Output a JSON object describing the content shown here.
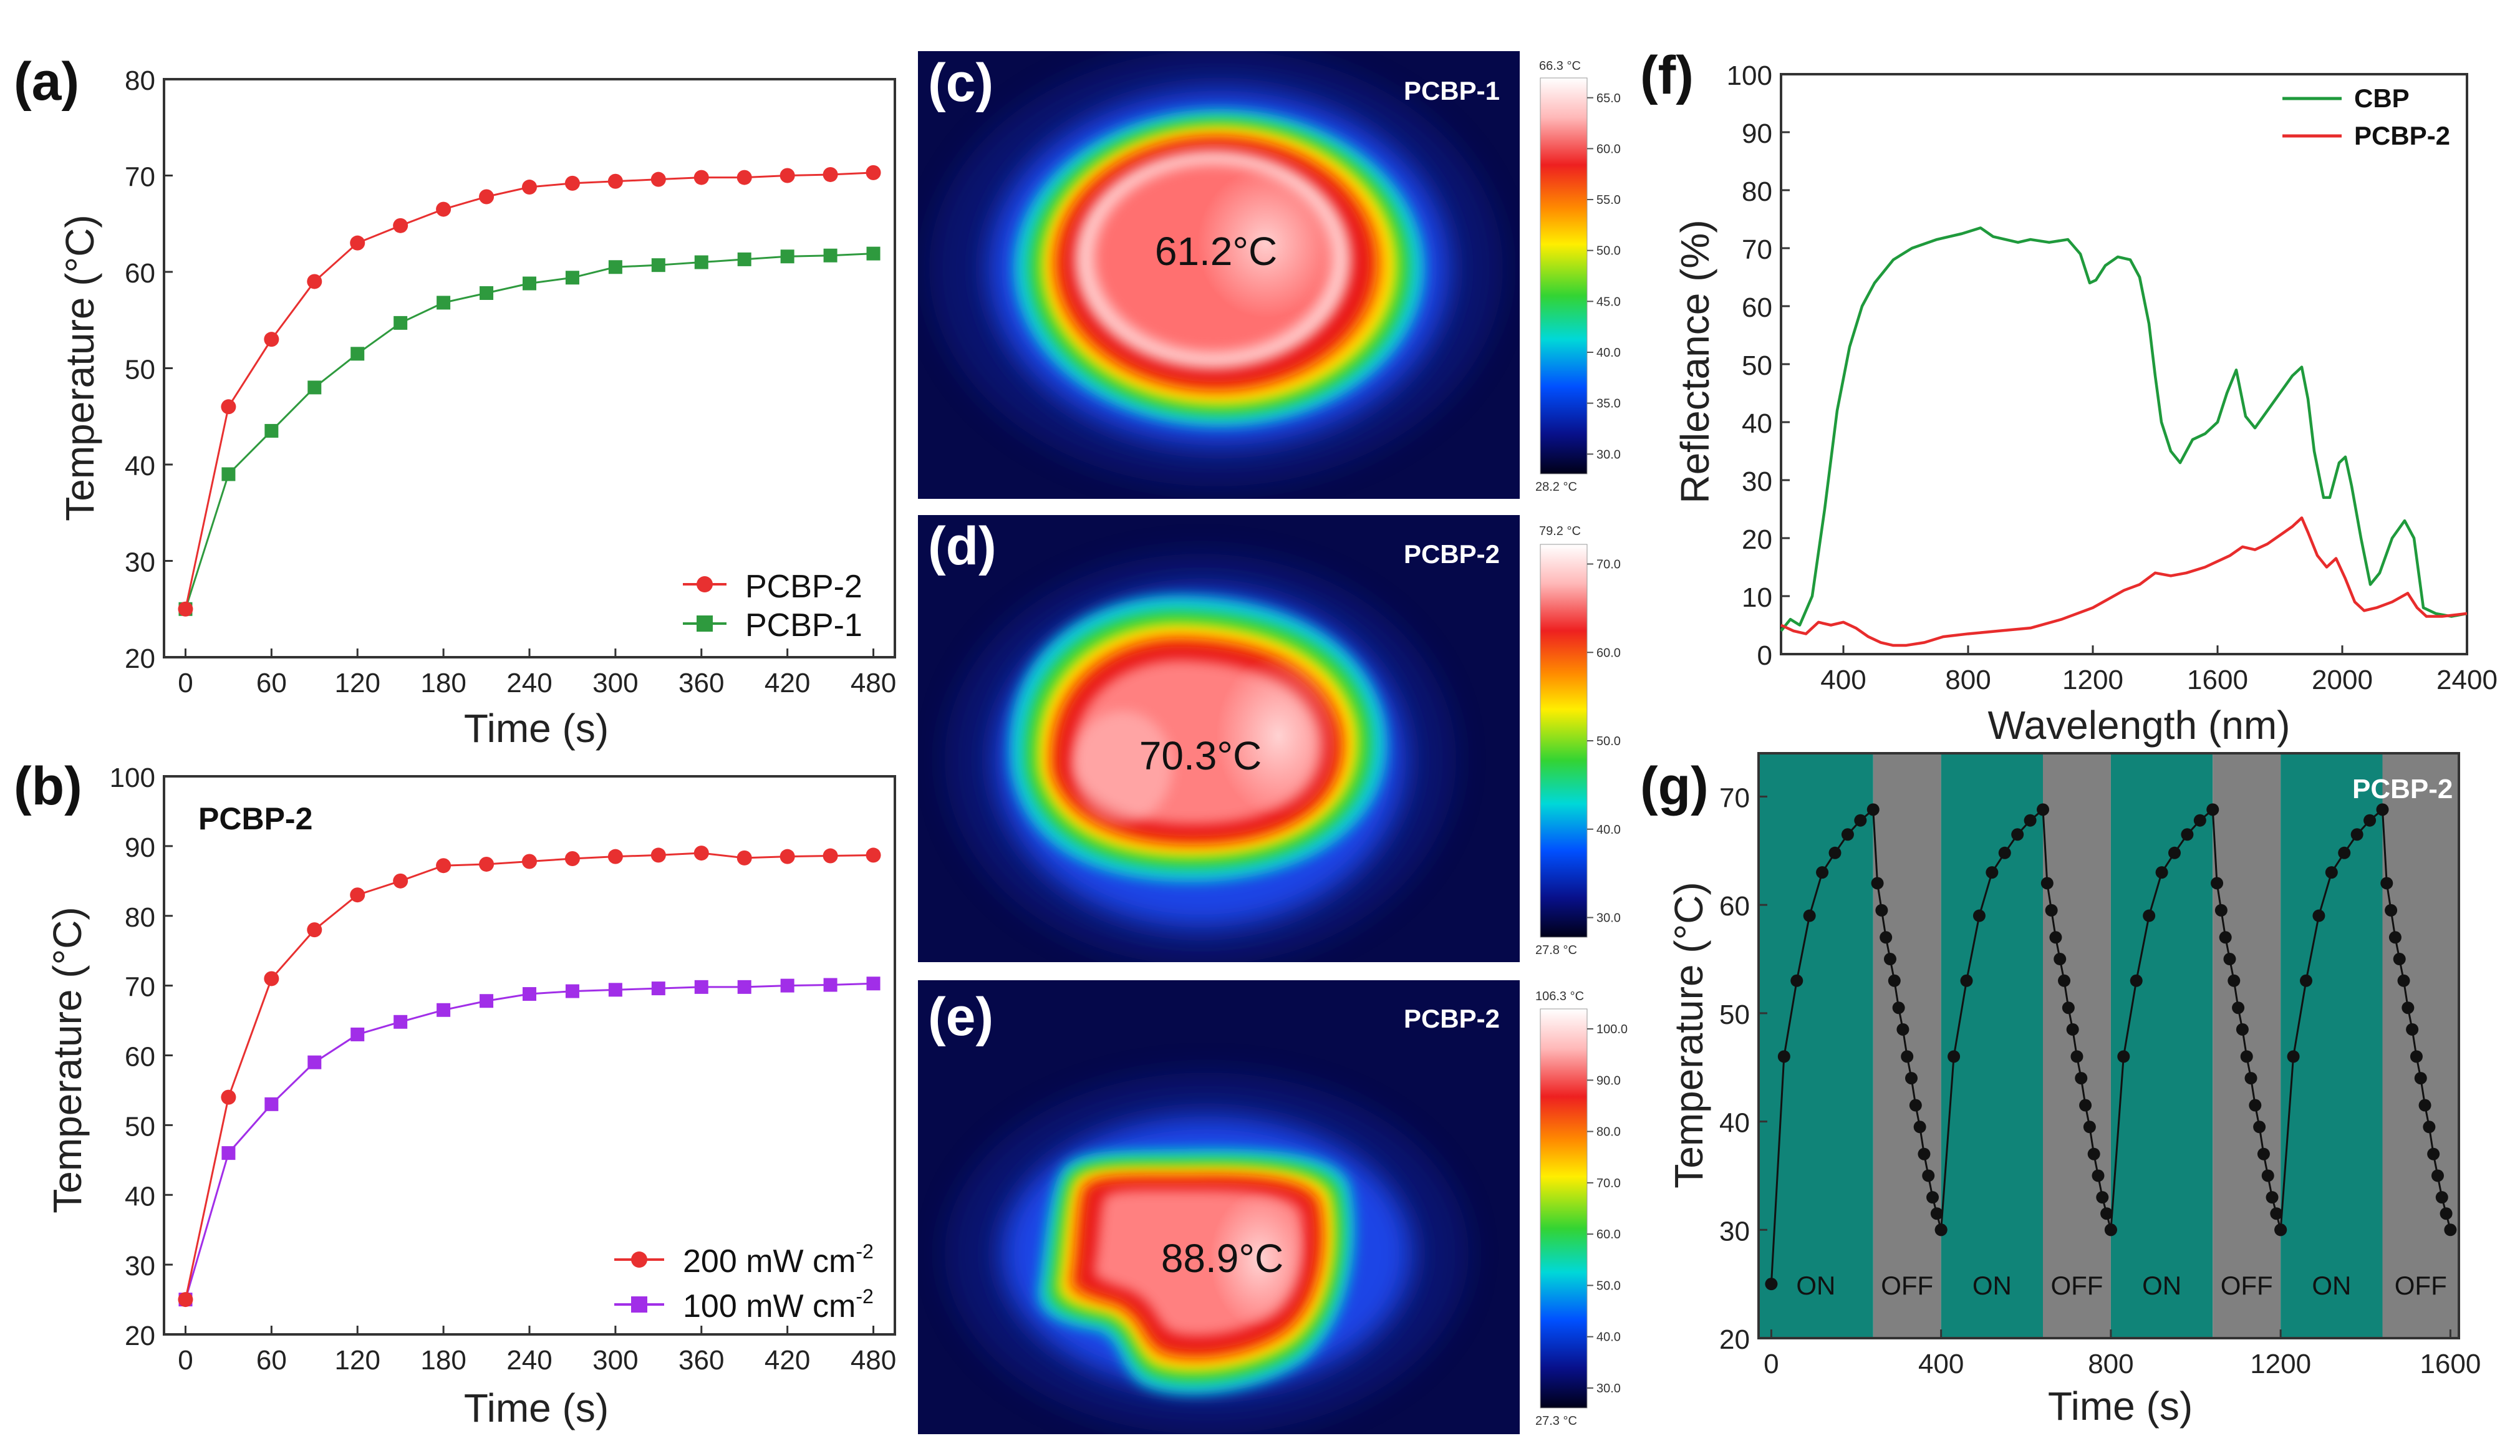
{
  "chart_data": [
    {
      "panel": "(a)",
      "type": "line",
      "xlabel": "Time (s)",
      "ylabel": "Temperature (°C)",
      "xlim": [
        -15,
        495
      ],
      "ylim": [
        20,
        80
      ],
      "xticks": [
        0,
        60,
        120,
        180,
        240,
        300,
        360,
        420,
        480
      ],
      "yticks": [
        20,
        30,
        40,
        50,
        60,
        70,
        80
      ],
      "legend_position": "bottom-right",
      "x": [
        0,
        30,
        60,
        90,
        120,
        150,
        180,
        210,
        240,
        270,
        300,
        330,
        360,
        390,
        420,
        450,
        480
      ],
      "series": [
        {
          "name": "PCBP-2",
          "color": "#e83030",
          "marker": "circle",
          "values": [
            25,
            46,
            53,
            59,
            63,
            64.8,
            66.5,
            67.8,
            68.8,
            69.2,
            69.4,
            69.6,
            69.8,
            69.8,
            70.0,
            70.1,
            70.3
          ]
        },
        {
          "name": "PCBP-1",
          "color": "#2e9a3e",
          "marker": "square",
          "values": [
            25,
            39,
            43.5,
            48,
            51.5,
            54.7,
            56.8,
            57.8,
            58.8,
            59.4,
            60.5,
            60.7,
            61.0,
            61.3,
            61.6,
            61.7,
            61.9
          ]
        }
      ]
    },
    {
      "panel": "(b)",
      "type": "line",
      "annotation": "PCBP-2",
      "xlabel": "Time (s)",
      "ylabel": "Temperature (°C)",
      "xlim": [
        -15,
        495
      ],
      "ylim": [
        20,
        100
      ],
      "xticks": [
        0,
        60,
        120,
        180,
        240,
        300,
        360,
        420,
        480
      ],
      "yticks": [
        20,
        30,
        40,
        50,
        60,
        70,
        80,
        90,
        100
      ],
      "legend_position": "bottom-right",
      "x": [
        0,
        30,
        60,
        90,
        120,
        150,
        180,
        210,
        240,
        270,
        300,
        330,
        360,
        390,
        420,
        450,
        480
      ],
      "series": [
        {
          "name_main": "200 mW cm",
          "name_sup": "-2",
          "color": "#e83030",
          "marker": "circle",
          "values": [
            25,
            54,
            71,
            78,
            83,
            85,
            87.2,
            87.4,
            87.8,
            88.2,
            88.5,
            88.7,
            89.0,
            88.3,
            88.5,
            88.6,
            88.7
          ]
        },
        {
          "name_main": "100 mW cm",
          "name_sup": "-2",
          "color": "#a12ee8",
          "marker": "square",
          "values": [
            25,
            46,
            53,
            59,
            63,
            64.8,
            66.5,
            67.8,
            68.8,
            69.2,
            69.4,
            69.6,
            69.8,
            69.8,
            70.0,
            70.1,
            70.3
          ]
        }
      ]
    },
    {
      "panel": "(f)",
      "type": "line",
      "xlabel": "Wavelength (nm)",
      "ylabel": "Reflectance (%)",
      "xlim": [
        200,
        2400
      ],
      "ylim": [
        0,
        100
      ],
      "xticks": [
        400,
        800,
        1200,
        1600,
        2000,
        2400
      ],
      "yticks": [
        0,
        10,
        20,
        30,
        40,
        50,
        60,
        70,
        80,
        90,
        100
      ],
      "legend_position": "top-right",
      "series": [
        {
          "name": "CBP",
          "color": "#1f9a3c",
          "x": [
            200,
            230,
            260,
            300,
            340,
            380,
            420,
            460,
            500,
            560,
            620,
            700,
            780,
            840,
            880,
            920,
            960,
            1000,
            1060,
            1120,
            1160,
            1190,
            1210,
            1240,
            1280,
            1320,
            1350,
            1380,
            1400,
            1420,
            1450,
            1480,
            1520,
            1560,
            1600,
            1630,
            1660,
            1690,
            1720,
            1760,
            1800,
            1840,
            1870,
            1890,
            1910,
            1940,
            1960,
            1990,
            2010,
            2030,
            2060,
            2090,
            2120,
            2160,
            2200,
            2230,
            2260,
            2300,
            2350,
            2400
          ],
          "values": [
            4,
            6,
            5,
            10,
            25,
            42,
            53,
            60,
            64,
            68,
            70,
            71.5,
            72.5,
            73.5,
            72,
            71.5,
            71,
            71.5,
            71,
            71.5,
            69,
            64,
            64.5,
            67,
            68.5,
            68,
            65,
            57,
            48,
            40,
            35,
            33,
            37,
            38,
            40,
            45,
            49,
            41,
            39,
            42,
            45,
            48,
            49.5,
            44,
            35,
            27,
            27,
            33,
            34,
            29,
            20,
            12,
            14,
            20,
            23,
            20,
            8,
            7,
            6.5,
            7
          ]
        },
        {
          "name": "PCBP-2",
          "color": "#e82c2c",
          "x": [
            200,
            240,
            280,
            320,
            360,
            400,
            440,
            480,
            520,
            560,
            600,
            660,
            720,
            800,
            900,
            1000,
            1100,
            1200,
            1300,
            1350,
            1400,
            1450,
            1500,
            1560,
            1600,
            1640,
            1680,
            1720,
            1760,
            1800,
            1840,
            1870,
            1890,
            1920,
            1950,
            1980,
            2010,
            2040,
            2070,
            2110,
            2160,
            2210,
            2240,
            2270,
            2320,
            2400
          ],
          "values": [
            5,
            4,
            3.5,
            5.5,
            5,
            5.5,
            4.5,
            3,
            2,
            1.5,
            1.5,
            2,
            3,
            3.5,
            4,
            4.5,
            6,
            8,
            11,
            12,
            14,
            13.5,
            14,
            15,
            16,
            17,
            18.5,
            18,
            19,
            20.5,
            22,
            23.5,
            21,
            17,
            15,
            16.5,
            13,
            9,
            7.5,
            8,
            9,
            10.5,
            8,
            6.5,
            6.5,
            7
          ]
        }
      ]
    },
    {
      "panel": "(g)",
      "type": "line",
      "annotation": "PCBP-2",
      "xlabel": "Time (s)",
      "ylabel": "Temperature (°C)",
      "xlim": [
        -30,
        1620
      ],
      "ylim": [
        20,
        74
      ],
      "xticks": [
        0,
        400,
        800,
        1200,
        1600
      ],
      "yticks": [
        20,
        30,
        40,
        50,
        60,
        70
      ],
      "color": "#111111",
      "on_color": "#108478",
      "off_color": "#808080",
      "phases": [
        {
          "label": "ON",
          "start": -30,
          "end": 240
        },
        {
          "label": "OFF",
          "start": 240,
          "end": 400
        },
        {
          "label": "ON",
          "start": 400,
          "end": 640
        },
        {
          "label": "OFF",
          "start": 640,
          "end": 800
        },
        {
          "label": "ON",
          "start": 800,
          "end": 1040
        },
        {
          "label": "OFF",
          "start": 1040,
          "end": 1200
        },
        {
          "label": "ON",
          "start": 1200,
          "end": 1440
        },
        {
          "label": "OFF",
          "start": 1440,
          "end": 1620
        }
      ],
      "cycle_heating": [
        [
          0,
          25
        ],
        [
          30,
          46
        ],
        [
          60,
          53
        ],
        [
          90,
          59
        ],
        [
          120,
          63
        ],
        [
          150,
          64.8
        ],
        [
          180,
          66.5
        ],
        [
          210,
          67.8
        ],
        [
          240,
          68.8
        ]
      ],
      "cycle_cooling": [
        [
          240,
          68.8
        ],
        [
          250,
          62
        ],
        [
          260,
          59.5
        ],
        [
          270,
          57
        ],
        [
          280,
          55
        ],
        [
          290,
          53
        ],
        [
          300,
          50.5
        ],
        [
          310,
          48.5
        ],
        [
          320,
          46
        ],
        [
          330,
          44
        ],
        [
          340,
          41.5
        ],
        [
          350,
          39.5
        ],
        [
          360,
          37
        ],
        [
          370,
          35
        ],
        [
          380,
          33
        ],
        [
          390,
          31.5
        ],
        [
          400,
          30
        ]
      ],
      "later_cycles_start_temp": 30
    }
  ],
  "thermal_images": [
    {
      "panel": "(c)",
      "sample": "PCBP-1",
      "temp_readout": "61.2°C",
      "scale_max": "66.3 °C",
      "scale_min": "28.2 °C",
      "ticks": [
        "65.0",
        "60.0",
        "55.0",
        "50.0",
        "45.0",
        "40.0",
        "35.0",
        "30.0"
      ]
    },
    {
      "panel": "(d)",
      "sample": "PCBP-2",
      "temp_readout": "70.3°C",
      "scale_max": "79.2 °C",
      "scale_min": "27.8 °C",
      "ticks": [
        "70.0",
        "60.0",
        "50.0",
        "40.0",
        "30.0"
      ]
    },
    {
      "panel": "(e)",
      "sample": "PCBP-2",
      "temp_readout": "88.9°C",
      "scale_max": "106.3 °C",
      "scale_min": "27.3 °C",
      "ticks": [
        "100.0",
        "90.0",
        "80.0",
        "70.0",
        "60.0",
        "50.0",
        "40.0",
        "30.0"
      ]
    }
  ]
}
